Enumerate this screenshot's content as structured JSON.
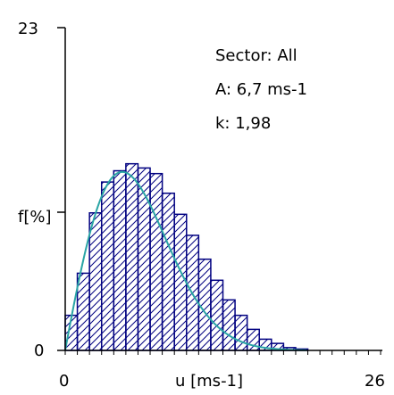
{
  "chart_data": {
    "type": "bar",
    "xlabel": "u [ms-1]",
    "ylabel": "f[%]",
    "xlim": [
      0,
      26
    ],
    "ylim": [
      0,
      23
    ],
    "x_tick_labels": [
      "0",
      "26"
    ],
    "y_tick_labels": [
      "0",
      "23"
    ],
    "grid": false,
    "annotations": [
      "Sector: All",
      "A: 6,7 ms-1",
      "k: 1,98"
    ],
    "bin_width": 1,
    "bins_start": [
      0,
      1,
      2,
      3,
      4,
      5,
      6,
      7,
      8,
      9,
      10,
      11,
      12,
      13,
      14,
      15,
      16,
      17,
      18,
      19,
      20,
      21,
      22,
      23,
      24,
      25
    ],
    "values": [
      2.5,
      5.5,
      9.8,
      12.0,
      12.8,
      13.3,
      13.0,
      12.6,
      11.2,
      9.7,
      8.2,
      6.5,
      5.0,
      3.6,
      2.5,
      1.5,
      0.8,
      0.5,
      0.2,
      0.1,
      0,
      0,
      0,
      0,
      0,
      0
    ],
    "fit_weibull": {
      "A": 6.7,
      "k": 1.98
    },
    "colors": {
      "bars": "#000080",
      "fit": "#2aa5a5",
      "axis": "#000000"
    }
  }
}
